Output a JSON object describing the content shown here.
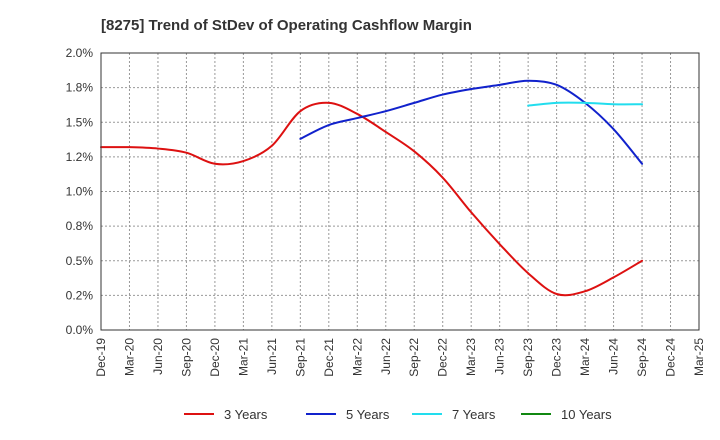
{
  "chart_data": {
    "type": "line",
    "title": "[8275]  Trend of StDev of Operating Cashflow Margin",
    "xlabel": "",
    "ylabel": "",
    "ylim": [
      0,
      2.0
    ],
    "y_ticks": [
      0.0,
      0.25,
      0.5,
      0.75,
      1.0,
      1.25,
      1.5,
      1.75,
      2.0
    ],
    "y_tick_labels": [
      "0.0%",
      "0.2%",
      "0.5%",
      "0.8%",
      "1.0%",
      "1.2%",
      "1.5%",
      "1.8%",
      "2.0%"
    ],
    "x_tick_labels": [
      "Dec-19",
      "Mar-20",
      "Jun-20",
      "Sep-20",
      "Dec-20",
      "Mar-21",
      "Jun-21",
      "Sep-21",
      "Dec-21",
      "Mar-22",
      "Jun-22",
      "Sep-22",
      "Dec-22",
      "Mar-23",
      "Jun-23",
      "Sep-23",
      "Dec-23",
      "Mar-24",
      "Jun-24",
      "Sep-24",
      "Dec-24",
      "Mar-25"
    ],
    "grid": true,
    "legend_position": "bottom",
    "series": [
      {
        "name": "3 Years",
        "color": "#dd1111",
        "start_index": 0,
        "values": [
          1.32,
          1.32,
          1.31,
          1.28,
          1.2,
          1.22,
          1.33,
          1.58,
          1.64,
          1.56,
          1.43,
          1.29,
          1.1,
          0.85,
          0.62,
          0.41,
          0.26,
          0.28,
          0.38,
          0.5
        ]
      },
      {
        "name": "5 Years",
        "color": "#1122cc",
        "start_index": 7,
        "values": [
          1.38,
          1.48,
          1.53,
          1.58,
          1.64,
          1.7,
          1.74,
          1.77,
          1.8,
          1.77,
          1.64,
          1.45,
          1.2
        ]
      },
      {
        "name": "7 Years",
        "color": "#22ddee",
        "start_index": 15,
        "values": [
          1.62,
          1.64,
          1.64,
          1.63,
          1.63
        ]
      },
      {
        "name": "10 Years",
        "color": "#118811",
        "start_index": 0,
        "values": []
      }
    ]
  }
}
